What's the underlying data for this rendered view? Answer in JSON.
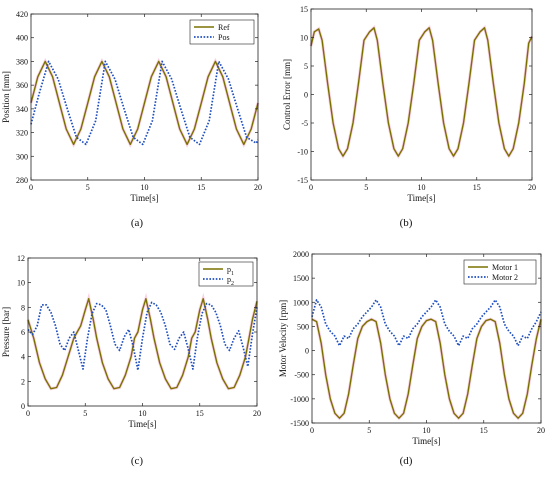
{
  "colors": {
    "olive": "#7a7000",
    "blue": "#1f4fbf",
    "pink": "#f07aa8"
  },
  "chart_data": [
    {
      "type": "line",
      "caption": "(a)",
      "xlabel": "Time[s]",
      "ylabel": "Position [mm]",
      "xlim": [
        0,
        20
      ],
      "ylim": [
        280,
        420
      ],
      "xticks": [
        0,
        5,
        10,
        15,
        20
      ],
      "yticks": [
        280,
        300,
        320,
        340,
        360,
        380,
        400,
        420
      ],
      "legend_position": "top-right",
      "series": [
        {
          "name": "Ref",
          "color": "olive",
          "dash": "solid",
          "x": [
            0,
            0.6,
            1.25,
            1.9,
            2.5,
            3.1,
            3.75,
            4.4,
            5.0,
            5.6,
            6.25,
            6.9,
            7.5,
            8.1,
            8.75,
            9.4,
            10.0,
            10.6,
            11.25,
            11.9,
            12.5,
            13.1,
            13.75,
            14.4,
            15.0,
            15.6,
            16.25,
            16.9,
            17.5,
            18.1,
            18.75,
            19.4,
            20.0
          ],
          "y": [
            345,
            367,
            380,
            367,
            345,
            323,
            310,
            323,
            345,
            367,
            380,
            367,
            345,
            323,
            310,
            323,
            345,
            367,
            380,
            367,
            345,
            323,
            310,
            323,
            345,
            367,
            380,
            367,
            345,
            323,
            310,
            323,
            345
          ]
        },
        {
          "name": "Pos",
          "color": "blue",
          "dash": "dotted",
          "x": [
            0,
            0.7,
            1.55,
            2.4,
            3.2,
            4.0,
            4.85,
            5.7,
            6.55,
            7.4,
            8.2,
            9.0,
            9.85,
            10.7,
            11.55,
            12.4,
            13.2,
            14.0,
            14.85,
            15.7,
            16.55,
            17.4,
            18.2,
            19.0,
            19.85,
            20.0
          ],
          "y": [
            327,
            352,
            380,
            365,
            340,
            316,
            310,
            330,
            380,
            365,
            340,
            316,
            310,
            330,
            380,
            365,
            340,
            316,
            310,
            330,
            380,
            365,
            340,
            316,
            311,
            314
          ]
        }
      ]
    },
    {
      "type": "line",
      "caption": "(b)",
      "xlabel": "Time[s]",
      "ylabel": "Control Error [mm]",
      "xlim": [
        0,
        20
      ],
      "ylim": [
        -15,
        15
      ],
      "xticks": [
        0,
        5,
        10,
        15,
        20
      ],
      "yticks": [
        -15,
        -10,
        -5,
        0,
        5,
        10,
        15
      ],
      "series": [
        {
          "color": "olive",
          "dash": "solid",
          "x": [
            0,
            0.3,
            0.7,
            1.0,
            1.5,
            2.0,
            2.5,
            2.9,
            3.3,
            3.8,
            4.3,
            4.8,
            5.3,
            5.7,
            6.0,
            6.5,
            7.0,
            7.5,
            7.9,
            8.3,
            8.8,
            9.3,
            9.8,
            10.3,
            10.7,
            11.0,
            11.5,
            12.0,
            12.5,
            12.9,
            13.3,
            13.8,
            14.3,
            14.8,
            15.3,
            15.7,
            16.0,
            16.5,
            17.0,
            17.5,
            17.9,
            18.3,
            18.8,
            19.3,
            19.7,
            20.0
          ],
          "y": [
            8.5,
            11.0,
            11.5,
            9.5,
            2.0,
            -5.0,
            -9.5,
            -10.8,
            -9.5,
            -5.0,
            2.0,
            9.5,
            11.0,
            11.7,
            9.5,
            2.0,
            -5.0,
            -9.5,
            -10.8,
            -9.5,
            -5.0,
            2.0,
            9.5,
            11.0,
            11.7,
            9.5,
            2.0,
            -5.0,
            -9.5,
            -10.8,
            -9.5,
            -5.0,
            2.0,
            9.5,
            11.0,
            11.7,
            9.5,
            2.0,
            -5.0,
            -9.5,
            -10.8,
            -9.5,
            -5.0,
            2.0,
            9.0,
            10.2
          ]
        }
      ]
    },
    {
      "type": "line",
      "caption": "(c)",
      "xlabel": "Time[s]",
      "ylabel": "Pressure [bar]",
      "xlim": [
        0,
        20
      ],
      "ylim": [
        0,
        12
      ],
      "xticks": [
        0,
        5,
        10,
        15,
        20
      ],
      "yticks": [
        0,
        2,
        4,
        6,
        8,
        10,
        12
      ],
      "legend_position": "top-right",
      "series": [
        {
          "name": "p",
          "sub": "1",
          "color": "olive",
          "dash": "solid",
          "x": [
            0,
            0.5,
            1.0,
            1.5,
            2.0,
            2.5,
            3.0,
            3.5,
            4.0,
            4.3,
            4.6,
            5.0,
            5.3,
            5.7,
            6.0,
            6.5,
            7.0,
            7.5,
            8.0,
            8.5,
            9.0,
            9.3,
            9.6,
            10.0,
            10.3,
            10.7,
            11.0,
            11.5,
            12.0,
            12.5,
            13.0,
            13.5,
            14.0,
            14.3,
            14.6,
            15.0,
            15.3,
            15.7,
            16.0,
            16.5,
            17.0,
            17.5,
            18.0,
            18.5,
            19.0,
            19.3,
            19.6,
            20.0
          ],
          "y": [
            7.0,
            5.5,
            3.5,
            2.2,
            1.4,
            1.5,
            2.5,
            4.0,
            5.5,
            6.0,
            6.5,
            7.8,
            8.7,
            7.0,
            5.5,
            3.5,
            2.2,
            1.4,
            1.5,
            2.5,
            4.0,
            5.5,
            6.0,
            7.8,
            8.7,
            7.0,
            5.5,
            3.5,
            2.2,
            1.4,
            1.5,
            2.5,
            4.0,
            5.5,
            6.0,
            7.8,
            8.7,
            7.0,
            5.5,
            3.5,
            2.2,
            1.4,
            1.5,
            2.5,
            4.0,
            5.5,
            7.0,
            8.5
          ]
        },
        {
          "name": "p",
          "sub": "2",
          "color": "blue",
          "dash": "dotted",
          "x": [
            0,
            0.4,
            0.8,
            1.2,
            1.6,
            2.0,
            2.4,
            2.8,
            3.2,
            3.6,
            4.0,
            4.4,
            4.8,
            5.2,
            5.6,
            6.0,
            6.4,
            6.8,
            7.2,
            7.6,
            8.0,
            8.4,
            8.8,
            9.2,
            9.6,
            10.0,
            10.4,
            10.8,
            11.2,
            11.6,
            12.0,
            12.4,
            12.8,
            13.2,
            13.6,
            14.0,
            14.4,
            14.8,
            15.2,
            15.6,
            16.0,
            16.4,
            16.8,
            17.2,
            17.6,
            18.0,
            18.4,
            18.8,
            19.2,
            19.6,
            20.0
          ],
          "y": [
            6.2,
            5.8,
            6.5,
            8.2,
            8.2,
            7.6,
            6.5,
            5.0,
            4.5,
            5.5,
            6.0,
            4.5,
            3.0,
            5.5,
            7.5,
            8.3,
            8.2,
            7.8,
            6.5,
            5.0,
            4.5,
            5.6,
            6.2,
            4.8,
            2.9,
            5.5,
            7.6,
            8.4,
            8.2,
            7.6,
            6.5,
            5.0,
            4.6,
            5.5,
            6.0,
            4.6,
            3.0,
            5.6,
            7.5,
            8.3,
            8.2,
            7.6,
            6.5,
            5.0,
            4.5,
            5.5,
            6.1,
            4.7,
            3.2,
            5.8,
            8.0
          ]
        }
      ]
    },
    {
      "type": "line",
      "caption": "(d)",
      "xlabel": "Time[s]",
      "ylabel": "Motor Velocity [rpm]",
      "xlim": [
        0,
        20
      ],
      "ylim": [
        -1500,
        2000
      ],
      "xticks": [
        0,
        5,
        10,
        15,
        20
      ],
      "yticks": [
        -1500,
        -1000,
        -500,
        0,
        500,
        1000,
        1500,
        2000
      ],
      "legend_position": "top-right",
      "series": [
        {
          "name": "Motor 1",
          "color": "olive",
          "dash": "solid",
          "x": [
            0,
            0.4,
            0.8,
            1.2,
            1.6,
            2.0,
            2.4,
            2.8,
            3.2,
            3.6,
            4.0,
            4.4,
            4.8,
            5.2,
            5.6,
            6.0,
            6.4,
            6.8,
            7.2,
            7.6,
            8.0,
            8.4,
            8.8,
            9.2,
            9.6,
            10.0,
            10.4,
            10.8,
            11.2,
            11.6,
            12.0,
            12.4,
            12.8,
            13.2,
            13.6,
            14.0,
            14.4,
            14.8,
            15.2,
            15.6,
            16.0,
            16.4,
            16.8,
            17.2,
            17.6,
            18.0,
            18.4,
            18.8,
            19.2,
            19.6,
            20.0
          ],
          "y": [
            650,
            600,
            150,
            -500,
            -1000,
            -1300,
            -1400,
            -1300,
            -900,
            -300,
            250,
            500,
            600,
            650,
            600,
            150,
            -500,
            -1000,
            -1300,
            -1400,
            -1300,
            -900,
            -300,
            250,
            500,
            620,
            650,
            600,
            150,
            -500,
            -1000,
            -1300,
            -1400,
            -1300,
            -900,
            -300,
            250,
            500,
            620,
            650,
            600,
            150,
            -500,
            -1000,
            -1300,
            -1400,
            -1300,
            -900,
            -300,
            250,
            650
          ]
        },
        {
          "name": "Motor 2",
          "color": "blue",
          "dash": "dotted",
          "x": [
            0,
            0.4,
            0.8,
            1.2,
            1.6,
            2.0,
            2.4,
            2.8,
            3.2,
            3.6,
            4.0,
            4.4,
            4.8,
            5.2,
            5.6,
            6.0,
            6.4,
            6.8,
            7.2,
            7.6,
            8.0,
            8.4,
            8.8,
            9.2,
            9.6,
            10.0,
            10.4,
            10.8,
            11.2,
            11.6,
            12.0,
            12.4,
            12.8,
            13.2,
            13.6,
            14.0,
            14.4,
            14.8,
            15.2,
            15.6,
            16.0,
            16.4,
            16.8,
            17.2,
            17.6,
            18.0,
            18.4,
            18.8,
            19.2,
            19.6,
            20.0
          ],
          "y": [
            700,
            1050,
            900,
            550,
            400,
            300,
            100,
            300,
            250,
            450,
            550,
            700,
            800,
            900,
            1050,
            900,
            550,
            400,
            300,
            100,
            300,
            250,
            450,
            550,
            700,
            800,
            900,
            1050,
            900,
            550,
            400,
            300,
            100,
            300,
            250,
            450,
            550,
            700,
            800,
            900,
            1050,
            900,
            550,
            400,
            300,
            100,
            300,
            250,
            450,
            600,
            800
          ]
        }
      ]
    }
  ]
}
